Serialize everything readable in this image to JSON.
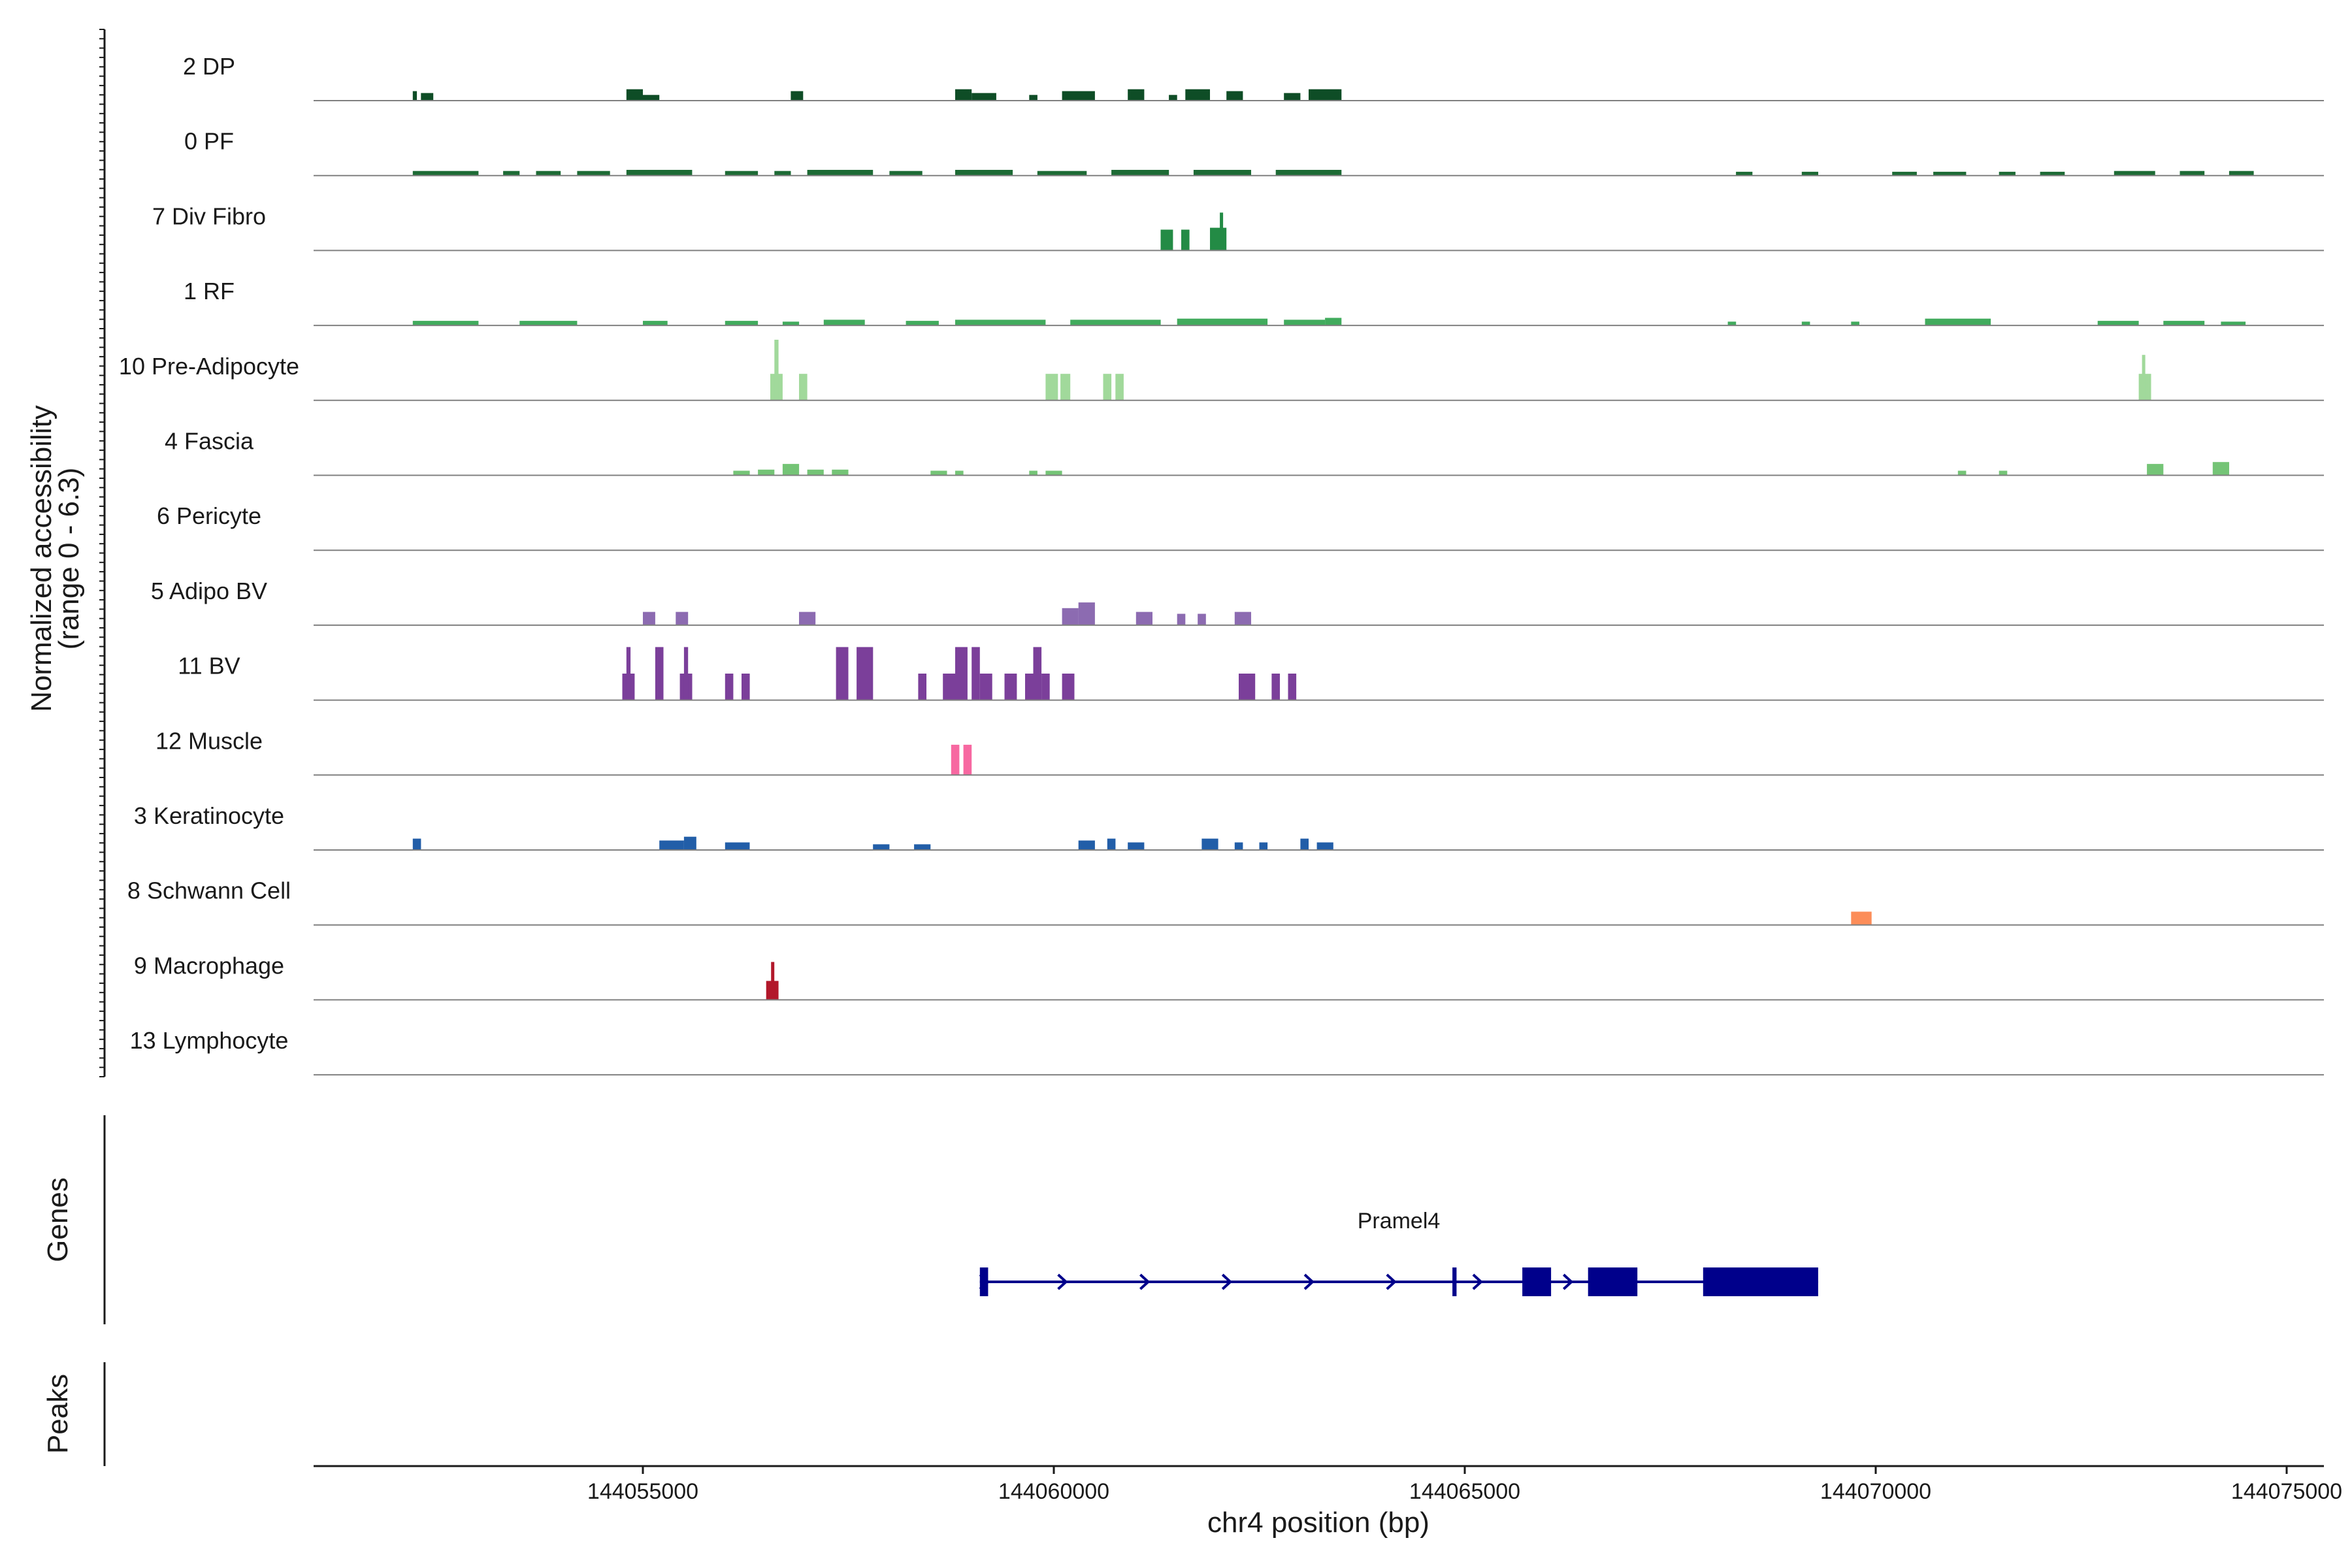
{
  "chart_data": {
    "type": "genome-browser-coverage",
    "xlabel": "chr4 position (bp)",
    "xlim": [
      144051000,
      144075500
    ],
    "x_ticks": [
      144055000,
      144060000,
      144065000,
      144070000,
      144075000
    ],
    "accessibility_axis_label": [
      "Normalized accessibility",
      "(range 0 - 6.3)"
    ],
    "accessibility_range": [
      0,
      6.3
    ],
    "genes_axis_label": "Genes",
    "peaks_axis_label": "Peaks",
    "tracks": [
      {
        "name": "2 DP",
        "color": "#0e4d26",
        "peaks": [
          [
            144052200,
            144052250,
            0.25
          ],
          [
            144052300,
            144052450,
            0.2
          ],
          [
            144054800,
            144055000,
            0.3
          ],
          [
            144055000,
            144055200,
            0.15
          ],
          [
            144056800,
            144056950,
            0.25
          ],
          [
            144058800,
            144059000,
            0.3
          ],
          [
            144059000,
            144059300,
            0.2
          ],
          [
            144059700,
            144059800,
            0.15
          ],
          [
            144060100,
            144060500,
            0.25
          ],
          [
            144060900,
            144061100,
            0.3
          ],
          [
            144061400,
            144061500,
            0.15
          ],
          [
            144061600,
            144061900,
            0.3
          ],
          [
            144062100,
            144062300,
            0.25
          ],
          [
            144062800,
            144063000,
            0.2
          ],
          [
            144063100,
            144063500,
            0.3
          ]
        ]
      },
      {
        "name": "0 PF",
        "color": "#1d6b35",
        "peaks": [
          [
            144052200,
            144053000,
            0.12
          ],
          [
            144053300,
            144053500,
            0.12
          ],
          [
            144053700,
            144054000,
            0.12
          ],
          [
            144054200,
            144054600,
            0.12
          ],
          [
            144054800,
            144055600,
            0.15
          ],
          [
            144056000,
            144056400,
            0.12
          ],
          [
            144056600,
            144056800,
            0.12
          ],
          [
            144057000,
            144057800,
            0.15
          ],
          [
            144058000,
            144058400,
            0.12
          ],
          [
            144058800,
            144059500,
            0.15
          ],
          [
            144059800,
            144060400,
            0.12
          ],
          [
            144060700,
            144061400,
            0.15
          ],
          [
            144061700,
            144062400,
            0.15
          ],
          [
            144062700,
            144063500,
            0.15
          ],
          [
            144068300,
            144068500,
            0.1
          ],
          [
            144069100,
            144069300,
            0.1
          ],
          [
            144070200,
            144070500,
            0.1
          ],
          [
            144070700,
            144071100,
            0.1
          ],
          [
            144071500,
            144071700,
            0.1
          ],
          [
            144072000,
            144072300,
            0.1
          ],
          [
            144072900,
            144073400,
            0.12
          ],
          [
            144073700,
            144074000,
            0.12
          ],
          [
            144074300,
            144074600,
            0.12
          ]
        ]
      },
      {
        "name": "7 Div Fibro",
        "color": "#238b45",
        "peaks": [
          [
            144061300,
            144061450,
            0.55
          ],
          [
            144061550,
            144061650,
            0.55
          ],
          [
            144061900,
            144062100,
            0.6
          ],
          [
            144062020,
            144062060,
            1.0
          ]
        ]
      },
      {
        "name": "1 RF",
        "color": "#41ab5d",
        "peaks": [
          [
            144052200,
            144053000,
            0.12
          ],
          [
            144053500,
            144054200,
            0.12
          ],
          [
            144055000,
            144055300,
            0.12
          ],
          [
            144056000,
            144056400,
            0.12
          ],
          [
            144056700,
            144056900,
            0.1
          ],
          [
            144057200,
            144057700,
            0.15
          ],
          [
            144058200,
            144058600,
            0.12
          ],
          [
            144058800,
            144059900,
            0.15
          ],
          [
            144060200,
            144061300,
            0.15
          ],
          [
            144061500,
            144062600,
            0.18
          ],
          [
            144062800,
            144063300,
            0.15
          ],
          [
            144063300,
            144063500,
            0.2
          ],
          [
            144068200,
            144068300,
            0.1
          ],
          [
            144069100,
            144069200,
            0.1
          ],
          [
            144069700,
            144069800,
            0.1
          ],
          [
            144070600,
            144071400,
            0.18
          ],
          [
            144072700,
            144073200,
            0.12
          ],
          [
            144073500,
            144074000,
            0.12
          ],
          [
            144074200,
            144074500,
            0.1
          ]
        ]
      },
      {
        "name": "10 Pre-Adipocyte",
        "color": "#a1d99b",
        "peaks": [
          [
            144056550,
            144056700,
            0.7
          ],
          [
            144056600,
            144056650,
            1.6
          ],
          [
            144056900,
            144057000,
            0.7
          ],
          [
            144059900,
            144060050,
            0.7
          ],
          [
            144060080,
            144060200,
            0.7
          ],
          [
            144060600,
            144060700,
            0.7
          ],
          [
            144060750,
            144060850,
            0.7
          ],
          [
            144073200,
            144073350,
            0.7
          ],
          [
            144073240,
            144073280,
            1.2
          ]
        ]
      },
      {
        "name": "4 Fascia",
        "color": "#74c476",
        "peaks": [
          [
            144056100,
            144056300,
            0.12
          ],
          [
            144056400,
            144056600,
            0.15
          ],
          [
            144056700,
            144056900,
            0.3
          ],
          [
            144057000,
            144057200,
            0.15
          ],
          [
            144057300,
            144057500,
            0.15
          ],
          [
            144058500,
            144058700,
            0.12
          ],
          [
            144058800,
            144058900,
            0.12
          ],
          [
            144059700,
            144059800,
            0.12
          ],
          [
            144059900,
            144060100,
            0.12
          ],
          [
            144071000,
            144071100,
            0.12
          ],
          [
            144071500,
            144071600,
            0.12
          ],
          [
            144073300,
            144073500,
            0.3
          ],
          [
            144074100,
            144074300,
            0.35
          ]
        ]
      },
      {
        "name": "6 Pericyte",
        "color": "#9ecae1",
        "peaks": []
      },
      {
        "name": "5 Adipo BV",
        "color": "#8c6bb1",
        "peaks": [
          [
            144055000,
            144055150,
            0.35
          ],
          [
            144055400,
            144055550,
            0.35
          ],
          [
            144056900,
            144057100,
            0.35
          ],
          [
            144060100,
            144060300,
            0.45
          ],
          [
            144060300,
            144060500,
            0.6
          ],
          [
            144061000,
            144061200,
            0.35
          ],
          [
            144061500,
            144061600,
            0.3
          ],
          [
            144061750,
            144061850,
            0.3
          ],
          [
            144062200,
            144062400,
            0.35
          ]
        ]
      },
      {
        "name": "11 BV",
        "color": "#7b3f9a",
        "peaks": [
          [
            144054750,
            144054900,
            0.7
          ],
          [
            144054800,
            144054850,
            1.4
          ],
          [
            144055150,
            144055250,
            1.4
          ],
          [
            144055450,
            144055600,
            0.7
          ],
          [
            144055500,
            144055550,
            1.4
          ],
          [
            144056000,
            144056100,
            0.7
          ],
          [
            144056200,
            144056300,
            0.7
          ],
          [
            144057350,
            144057500,
            1.4
          ],
          [
            144057600,
            144057800,
            1.4
          ],
          [
            144058350,
            144058450,
            0.7
          ],
          [
            144058650,
            144058800,
            0.7
          ],
          [
            144058800,
            144058950,
            1.4
          ],
          [
            144059000,
            144059100,
            1.4
          ],
          [
            144059100,
            144059250,
            0.7
          ],
          [
            144059400,
            144059550,
            0.7
          ],
          [
            144059650,
            144059750,
            0.7
          ],
          [
            144059750,
            144059850,
            1.4
          ],
          [
            144059850,
            144059950,
            0.7
          ],
          [
            144060100,
            144060250,
            0.7
          ],
          [
            144062250,
            144062450,
            0.7
          ],
          [
            144062650,
            144062750,
            0.7
          ],
          [
            144062850,
            144062950,
            0.7
          ]
        ]
      },
      {
        "name": "12 Muscle",
        "color": "#f768a1",
        "peaks": [
          [
            144058750,
            144058850,
            0.8
          ],
          [
            144058900,
            144059000,
            0.8
          ]
        ]
      },
      {
        "name": "3 Keratinocyte",
        "color": "#225ea8",
        "peaks": [
          [
            144052200,
            144052300,
            0.3
          ],
          [
            144055200,
            144055500,
            0.25
          ],
          [
            144055500,
            144055650,
            0.35
          ],
          [
            144056000,
            144056300,
            0.2
          ],
          [
            144057800,
            144058000,
            0.15
          ],
          [
            144058300,
            144058500,
            0.15
          ],
          [
            144060300,
            144060500,
            0.25
          ],
          [
            144060650,
            144060750,
            0.3
          ],
          [
            144060900,
            144061100,
            0.2
          ],
          [
            144061800,
            144062000,
            0.3
          ],
          [
            144062200,
            144062300,
            0.2
          ],
          [
            144062500,
            144062600,
            0.2
          ],
          [
            144063000,
            144063100,
            0.3
          ],
          [
            144063200,
            144063400,
            0.2
          ]
        ]
      },
      {
        "name": "8 Schwann Cell",
        "color": "#fc8d59",
        "peaks": [
          [
            144069700,
            144069950,
            0.35
          ]
        ]
      },
      {
        "name": "9 Macrophage",
        "color": "#b2182b",
        "peaks": [
          [
            144056500,
            144056650,
            0.5
          ],
          [
            144056560,
            144056600,
            1.0
          ]
        ]
      },
      {
        "name": "13 Lymphocyte",
        "color": "#ef3b2c",
        "peaks": []
      }
    ],
    "gene": {
      "name": "Pramel4",
      "color": "#00008b",
      "start": 144059100,
      "end": 144069300,
      "strand": "+",
      "exons": [
        [
          144059100,
          144059200
        ],
        [
          144064850,
          144064900
        ],
        [
          144065700,
          144066050
        ],
        [
          144066500,
          144067100
        ],
        [
          144067900,
          144069300
        ]
      ],
      "direction_markers": [
        144059150,
        144060100,
        144061100,
        144062100,
        144063100,
        144064100,
        144065150,
        144066250
      ]
    }
  }
}
